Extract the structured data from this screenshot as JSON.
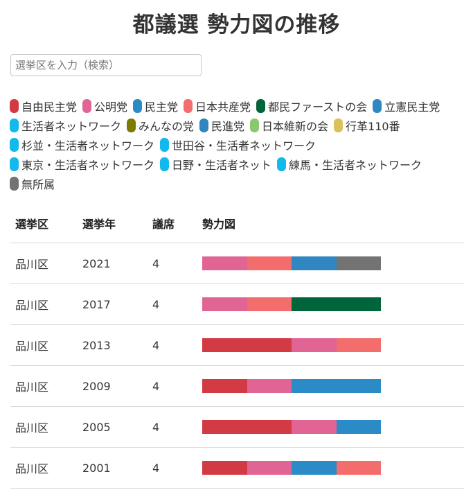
{
  "header": {
    "title": "都議選 勢力図の推移"
  },
  "search": {
    "placeholder": "選挙区を入力（検索）",
    "value": ""
  },
  "colors": {
    "自由民主党": "#d33b44",
    "公明党": "#e06595",
    "民主党": "#2b8bc6",
    "日本共産党": "#f26d6b",
    "都民ファーストの会": "#00653a",
    "立憲民主党": "#2f86c0",
    "生活者ネットワーク": "#14b9ec",
    "みんなの党": "#7d7b00",
    "民進党": "#2f86c0",
    "日本維新の会": "#8ac86f",
    "行革110番": "#dcc05a",
    "杉並・生活者ネットワーク": "#14b9ec",
    "世田谷・生活者ネットワーク": "#14b9ec",
    "東京・生活者ネットワーク": "#14b9ec",
    "日野・生活者ネット": "#14b9ec",
    "練馬・生活者ネットワーク": "#14b9ec",
    "無所属": "#737373"
  },
  "legend": [
    "自由民主党",
    "公明党",
    "民主党",
    "日本共産党",
    "都民ファーストの会",
    "立憲民主党",
    "生活者ネットワーク",
    "みんなの党",
    "民進党",
    "日本維新の会",
    "行革110番",
    "杉並・生活者ネットワーク",
    "世田谷・生活者ネットワーク",
    "東京・生活者ネットワーク",
    "日野・生活者ネット",
    "練馬・生活者ネットワーク",
    "無所属"
  ],
  "table": {
    "headers": {
      "district": "選挙区",
      "year": "選挙年",
      "seats": "議席",
      "chart": "勢力図"
    },
    "rows": [
      {
        "district": "品川区",
        "year": "2021",
        "seats": "4",
        "parties": [
          "公明党",
          "日本共産党",
          "立憲民主党",
          "無所属"
        ]
      },
      {
        "district": "品川区",
        "year": "2017",
        "seats": "4",
        "parties": [
          "公明党",
          "日本共産党",
          "都民ファーストの会",
          "都民ファーストの会"
        ]
      },
      {
        "district": "品川区",
        "year": "2013",
        "seats": "4",
        "parties": [
          "自由民主党",
          "自由民主党",
          "公明党",
          "日本共産党"
        ]
      },
      {
        "district": "品川区",
        "year": "2009",
        "seats": "4",
        "parties": [
          "自由民主党",
          "公明党",
          "民主党",
          "民主党"
        ]
      },
      {
        "district": "品川区",
        "year": "2005",
        "seats": "4",
        "parties": [
          "自由民主党",
          "自由民主党",
          "公明党",
          "民主党"
        ]
      },
      {
        "district": "品川区",
        "year": "2001",
        "seats": "4",
        "parties": [
          "自由民主党",
          "公明党",
          "民主党",
          "日本共産党"
        ]
      }
    ]
  }
}
